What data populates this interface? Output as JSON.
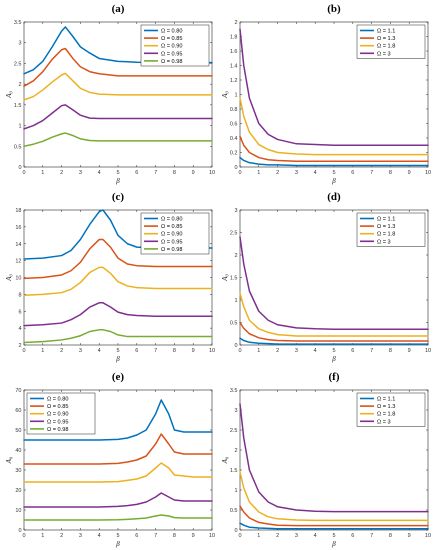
{
  "colors": [
    "#0072BD",
    "#D95319",
    "#EDB120",
    "#7E2F8E",
    "#77AC30"
  ],
  "chart_data": [
    {
      "panel": "(a)",
      "type": "line",
      "xlabel": "β",
      "ylabel": "A₀",
      "xlim": [
        0,
        10
      ],
      "ylim": [
        0,
        3.5
      ],
      "xticks": [
        0,
        1,
        2,
        3,
        4,
        5,
        6,
        7,
        8,
        9,
        10
      ],
      "yticks": [
        0,
        0.5,
        1,
        1.5,
        2,
        2.5,
        3,
        3.5
      ],
      "legend_position": "top-right",
      "series": [
        {
          "name": "Ω = 0.80",
          "x": [
            0,
            0.5,
            1,
            1.5,
            2,
            2.2,
            2.6,
            3,
            3.5,
            4,
            5,
            6,
            7,
            8,
            9,
            10
          ],
          "y": [
            2.25,
            2.35,
            2.55,
            2.9,
            3.28,
            3.38,
            3.15,
            2.9,
            2.75,
            2.62,
            2.55,
            2.53,
            2.52,
            2.52,
            2.52,
            2.52
          ]
        },
        {
          "name": "Ω = 0.85",
          "x": [
            0,
            0.5,
            1,
            1.5,
            2,
            2.2,
            2.6,
            3,
            3.5,
            4,
            5,
            6,
            7,
            8,
            9,
            10
          ],
          "y": [
            1.95,
            2.08,
            2.3,
            2.6,
            2.83,
            2.86,
            2.62,
            2.42,
            2.3,
            2.25,
            2.2,
            2.2,
            2.2,
            2.2,
            2.2,
            2.2
          ]
        },
        {
          "name": "Ω = 0.90",
          "x": [
            0,
            0.5,
            1,
            1.5,
            2,
            2.2,
            2.6,
            3,
            3.5,
            4,
            5,
            6,
            7,
            8,
            9,
            10
          ],
          "y": [
            1.62,
            1.7,
            1.86,
            2.05,
            2.22,
            2.26,
            2.08,
            1.9,
            1.8,
            1.76,
            1.74,
            1.74,
            1.74,
            1.74,
            1.74,
            1.74
          ]
        },
        {
          "name": "Ω = 0.95",
          "x": [
            0,
            0.5,
            1,
            1.5,
            2,
            2.2,
            2.6,
            3,
            3.5,
            4,
            5,
            6,
            7,
            8,
            9,
            10
          ],
          "y": [
            0.92,
            1.0,
            1.12,
            1.3,
            1.48,
            1.5,
            1.38,
            1.25,
            1.18,
            1.17,
            1.17,
            1.17,
            1.17,
            1.17,
            1.17,
            1.17
          ]
        },
        {
          "name": "Ω = 0.98",
          "x": [
            0,
            0.5,
            1,
            1.5,
            2,
            2.2,
            2.6,
            3,
            3.5,
            4,
            5,
            6,
            7,
            8,
            9,
            10
          ],
          "y": [
            0.5,
            0.55,
            0.62,
            0.72,
            0.8,
            0.82,
            0.76,
            0.68,
            0.64,
            0.63,
            0.63,
            0.63,
            0.63,
            0.63,
            0.63,
            0.63
          ]
        }
      ]
    },
    {
      "panel": "(b)",
      "type": "line",
      "xlabel": "β",
      "ylabel": "A₀",
      "xlim": [
        0,
        10
      ],
      "ylim": [
        0,
        2
      ],
      "xticks": [
        0,
        1,
        2,
        3,
        4,
        5,
        6,
        7,
        8,
        9,
        10
      ],
      "yticks": [
        0,
        0.2,
        0.4,
        0.6,
        0.8,
        1,
        1.2,
        1.4,
        1.6,
        1.8,
        2
      ],
      "legend_position": "top-right",
      "series": [
        {
          "name": "Ω = 1.1",
          "x": [
            0,
            0.2,
            0.5,
            1,
            1.5,
            2,
            3,
            4,
            5,
            6,
            7,
            8,
            9,
            10
          ],
          "y": [
            0.13,
            0.09,
            0.06,
            0.04,
            0.03,
            0.03,
            0.02,
            0.02,
            0.02,
            0.02,
            0.02,
            0.02,
            0.02,
            0.02
          ]
        },
        {
          "name": "Ω = 1.3",
          "x": [
            0,
            0.2,
            0.5,
            1,
            1.5,
            2,
            3,
            4,
            5,
            6,
            7,
            8,
            9,
            10
          ],
          "y": [
            0.42,
            0.3,
            0.2,
            0.13,
            0.1,
            0.09,
            0.08,
            0.08,
            0.08,
            0.08,
            0.08,
            0.08,
            0.08,
            0.08
          ]
        },
        {
          "name": "Ω = 1.8",
          "x": [
            0,
            0.2,
            0.5,
            1,
            1.5,
            2,
            3,
            4,
            5,
            6,
            7,
            8,
            9,
            10
          ],
          "y": [
            0.95,
            0.7,
            0.48,
            0.31,
            0.24,
            0.2,
            0.18,
            0.17,
            0.17,
            0.17,
            0.17,
            0.17,
            0.17,
            0.17
          ]
        },
        {
          "name": "Ω = 3",
          "x": [
            0,
            0.2,
            0.5,
            1,
            1.5,
            2,
            3,
            4,
            5,
            6,
            7,
            8,
            9,
            10
          ],
          "y": [
            1.9,
            1.4,
            0.95,
            0.6,
            0.45,
            0.38,
            0.32,
            0.31,
            0.3,
            0.3,
            0.3,
            0.3,
            0.3,
            0.3
          ]
        }
      ]
    },
    {
      "panel": "(c)",
      "type": "line",
      "xlabel": "β",
      "ylabel": "A₀",
      "xlim": [
        0,
        10
      ],
      "ylim": [
        2,
        18
      ],
      "xticks": [
        0,
        1,
        2,
        3,
        4,
        5,
        6,
        7,
        8,
        9,
        10
      ],
      "yticks": [
        2,
        4,
        6,
        8,
        10,
        12,
        14,
        16,
        18
      ],
      "legend_position": "top-right",
      "series": [
        {
          "name": "Ω = 0.80",
          "x": [
            0,
            1,
            2,
            2.5,
            3,
            3.5,
            4,
            4.2,
            4.6,
            5,
            5.5,
            6,
            7,
            8,
            9,
            10
          ],
          "y": [
            12.2,
            12.3,
            12.6,
            13.2,
            14.5,
            16.3,
            17.8,
            18.0,
            16.8,
            15.0,
            14.0,
            13.6,
            13.5,
            13.5,
            13.5,
            13.5
          ]
        },
        {
          "name": "Ω = 0.85",
          "x": [
            0,
            1,
            2,
            2.5,
            3,
            3.5,
            4,
            4.2,
            4.6,
            5,
            5.5,
            6,
            7,
            8,
            9,
            10
          ],
          "y": [
            9.9,
            10.0,
            10.3,
            10.8,
            11.8,
            13.4,
            14.5,
            14.5,
            13.6,
            12.3,
            11.6,
            11.4,
            11.3,
            11.3,
            11.3,
            11.3
          ]
        },
        {
          "name": "Ω = 0.90",
          "x": [
            0,
            1,
            2,
            2.5,
            3,
            3.5,
            4,
            4.2,
            4.6,
            5,
            5.5,
            6,
            7,
            8,
            9,
            10
          ],
          "y": [
            7.9,
            8.0,
            8.2,
            8.6,
            9.4,
            10.6,
            11.2,
            11.2,
            10.5,
            9.5,
            9.0,
            8.8,
            8.7,
            8.7,
            8.7,
            8.7
          ]
        },
        {
          "name": "Ω = 0.95",
          "x": [
            0,
            1,
            2,
            2.5,
            3,
            3.5,
            4,
            4.2,
            4.6,
            5,
            5.5,
            6,
            7,
            8,
            9,
            10
          ],
          "y": [
            4.3,
            4.4,
            4.6,
            5.0,
            5.6,
            6.5,
            7.0,
            7.0,
            6.5,
            5.9,
            5.6,
            5.5,
            5.4,
            5.4,
            5.4,
            5.4
          ]
        },
        {
          "name": "Ω = 0.98",
          "x": [
            0,
            1,
            2,
            2.5,
            3,
            3.5,
            4,
            4.2,
            4.6,
            5,
            5.5,
            6,
            7,
            8,
            9,
            10
          ],
          "y": [
            2.3,
            2.4,
            2.6,
            2.8,
            3.1,
            3.6,
            3.8,
            3.8,
            3.6,
            3.2,
            3.0,
            3.0,
            3.0,
            3.0,
            3.0,
            3.0
          ]
        }
      ]
    },
    {
      "panel": "(d)",
      "type": "line",
      "xlabel": "β",
      "ylabel": "A₀",
      "xlim": [
        0,
        10
      ],
      "ylim": [
        0,
        3
      ],
      "xticks": [
        0,
        1,
        2,
        3,
        4,
        5,
        6,
        7,
        8,
        9,
        10
      ],
      "yticks": [
        0,
        0.5,
        1,
        1.5,
        2,
        2.5,
        3
      ],
      "legend_position": "top-right",
      "series": [
        {
          "name": "Ω = 1.1",
          "x": [
            0,
            0.2,
            0.5,
            1,
            1.5,
            2,
            3,
            4,
            5,
            6,
            7,
            8,
            9,
            10
          ],
          "y": [
            0.15,
            0.1,
            0.06,
            0.04,
            0.03,
            0.02,
            0.02,
            0.02,
            0.02,
            0.02,
            0.02,
            0.02,
            0.02,
            0.02
          ]
        },
        {
          "name": "Ω = 1.3",
          "x": [
            0,
            0.2,
            0.5,
            1,
            1.5,
            2,
            3,
            4,
            5,
            6,
            7,
            8,
            9,
            10
          ],
          "y": [
            0.5,
            0.37,
            0.25,
            0.16,
            0.12,
            0.1,
            0.09,
            0.09,
            0.09,
            0.09,
            0.09,
            0.09,
            0.09,
            0.09
          ]
        },
        {
          "name": "Ω = 1.8",
          "x": [
            0,
            0.2,
            0.5,
            1,
            1.5,
            2,
            3,
            4,
            5,
            6,
            7,
            8,
            9,
            10
          ],
          "y": [
            1.15,
            0.85,
            0.55,
            0.36,
            0.28,
            0.23,
            0.2,
            0.2,
            0.2,
            0.2,
            0.2,
            0.2,
            0.2,
            0.2
          ]
        },
        {
          "name": "Ω = 3",
          "x": [
            0,
            0.2,
            0.5,
            1,
            1.5,
            2,
            3,
            4,
            5,
            6,
            7,
            8,
            9,
            10
          ],
          "y": [
            2.4,
            1.8,
            1.2,
            0.75,
            0.55,
            0.45,
            0.38,
            0.36,
            0.35,
            0.35,
            0.35,
            0.35,
            0.35,
            0.35
          ]
        }
      ]
    },
    {
      "panel": "(e)",
      "type": "line",
      "xlabel": "β",
      "ylabel": "A₀",
      "xlim": [
        0,
        10
      ],
      "ylim": [
        0,
        70
      ],
      "xticks": [
        0,
        1,
        2,
        3,
        4,
        5,
        6,
        7,
        8,
        9,
        10
      ],
      "yticks": [
        0,
        10,
        20,
        30,
        40,
        50,
        60,
        70
      ],
      "legend_position": "top-left",
      "series": [
        {
          "name": "Ω = 0.80",
          "x": [
            0,
            2,
            4,
            5,
            5.5,
            6,
            6.5,
            7,
            7.3,
            7.7,
            8,
            8.5,
            9,
            10
          ],
          "y": [
            45,
            45,
            45,
            45.3,
            46,
            47.5,
            50,
            58,
            65,
            58,
            50,
            49,
            49,
            49
          ]
        },
        {
          "name": "Ω = 0.85",
          "x": [
            0,
            2,
            4,
            5,
            5.5,
            6,
            6.5,
            7,
            7.3,
            7.7,
            8,
            8.5,
            9,
            10
          ],
          "y": [
            33,
            33,
            33,
            33.3,
            34,
            35,
            37,
            43,
            48,
            43,
            39,
            38,
            38,
            38
          ]
        },
        {
          "name": "Ω = 0.90",
          "x": [
            0,
            2,
            4,
            5,
            5.5,
            6,
            6.5,
            7,
            7.3,
            7.7,
            8,
            8.5,
            9,
            10
          ],
          "y": [
            24,
            24,
            24,
            24.2,
            24.8,
            25.5,
            27,
            31,
            33.5,
            31,
            27.5,
            27,
            26.5,
            26.5
          ]
        },
        {
          "name": "Ω = 0.95",
          "x": [
            0,
            2,
            4,
            5,
            5.5,
            6,
            6.5,
            7,
            7.3,
            7.7,
            8,
            8.5,
            9,
            10
          ],
          "y": [
            11.5,
            11.5,
            11.5,
            11.8,
            12.2,
            12.8,
            14,
            16.5,
            18.5,
            16.5,
            15,
            14.5,
            14.5,
            14.5
          ]
        },
        {
          "name": "Ω = 0.98",
          "x": [
            0,
            2,
            4,
            5,
            5.5,
            6,
            6.5,
            7,
            7.3,
            7.7,
            8,
            8.5,
            9,
            10
          ],
          "y": [
            5,
            5,
            5,
            5.1,
            5.3,
            5.6,
            6,
            7,
            7.5,
            7,
            6.2,
            6,
            6,
            6
          ]
        }
      ]
    },
    {
      "panel": "(f)",
      "type": "line",
      "xlabel": "β",
      "ylabel": "A₀",
      "xlim": [
        0,
        10
      ],
      "ylim": [
        0,
        3.5
      ],
      "xticks": [
        0,
        1,
        2,
        3,
        4,
        5,
        6,
        7,
        8,
        9,
        10
      ],
      "yticks": [
        0,
        0.5,
        1,
        1.5,
        2,
        2.5,
        3,
        3.5
      ],
      "legend_position": "top-right",
      "series": [
        {
          "name": "Ω = 1.1",
          "x": [
            0,
            0.2,
            0.5,
            1,
            1.5,
            2,
            3,
            4,
            5,
            6,
            7,
            8,
            9,
            10
          ],
          "y": [
            0.17,
            0.12,
            0.07,
            0.05,
            0.04,
            0.03,
            0.03,
            0.03,
            0.03,
            0.03,
            0.03,
            0.03,
            0.03,
            0.03
          ]
        },
        {
          "name": "Ω = 1.3",
          "x": [
            0,
            0.2,
            0.5,
            1,
            1.5,
            2,
            3,
            4,
            5,
            6,
            7,
            8,
            9,
            10
          ],
          "y": [
            0.6,
            0.45,
            0.3,
            0.19,
            0.15,
            0.12,
            0.11,
            0.11,
            0.11,
            0.11,
            0.11,
            0.11,
            0.11,
            0.11
          ]
        },
        {
          "name": "Ω = 1.8",
          "x": [
            0,
            0.2,
            0.5,
            1,
            1.5,
            2,
            3,
            4,
            5,
            6,
            7,
            8,
            9,
            10
          ],
          "y": [
            1.45,
            1.05,
            0.7,
            0.45,
            0.33,
            0.28,
            0.25,
            0.24,
            0.24,
            0.24,
            0.24,
            0.24,
            0.24,
            0.24
          ]
        },
        {
          "name": "Ω = 3",
          "x": [
            0,
            0.2,
            0.5,
            1,
            1.5,
            2,
            3,
            4,
            5,
            6,
            7,
            8,
            9,
            10
          ],
          "y": [
            3.15,
            2.3,
            1.5,
            0.95,
            0.7,
            0.58,
            0.5,
            0.47,
            0.46,
            0.46,
            0.46,
            0.46,
            0.46,
            0.46
          ]
        }
      ]
    }
  ]
}
